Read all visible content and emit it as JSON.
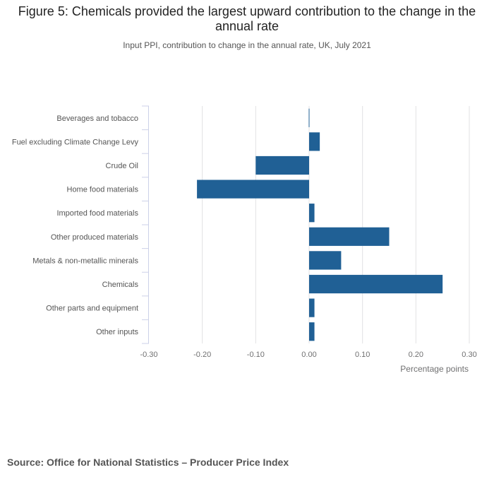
{
  "chart_data": {
    "type": "bar",
    "orientation": "horizontal",
    "title": "Figure 5: Chemicals provided the largest upward contribution to the change in the annual rate",
    "subtitle": "Input PPI, contribution to change in the annual rate, UK, July 2021",
    "categories": [
      "Beverages and tobacco",
      "Fuel excluding Climate Change Levy",
      "Crude Oil",
      "Home food materials",
      "Imported food materials",
      "Other produced materials",
      "Metals & non-metallic minerals",
      "Chemicals",
      "Other parts and equipment",
      "Other inputs"
    ],
    "values": [
      0.0,
      0.02,
      -0.1,
      -0.21,
      0.01,
      0.15,
      0.06,
      0.25,
      0.01,
      0.01
    ],
    "xlabel": "Percentage points",
    "ylabel": "",
    "xlim": [
      -0.3,
      0.3
    ],
    "xticks": [
      -0.3,
      -0.2,
      -0.1,
      0.0,
      0.1,
      0.2,
      0.3
    ],
    "xtick_labels": [
      "-0.30",
      "-0.20",
      "-0.10",
      "0.00",
      "0.10",
      "0.20",
      "0.30"
    ],
    "bar_color": "#206095",
    "grid": true,
    "source": "Source: Office for National Statistics – Producer Price Index"
  }
}
